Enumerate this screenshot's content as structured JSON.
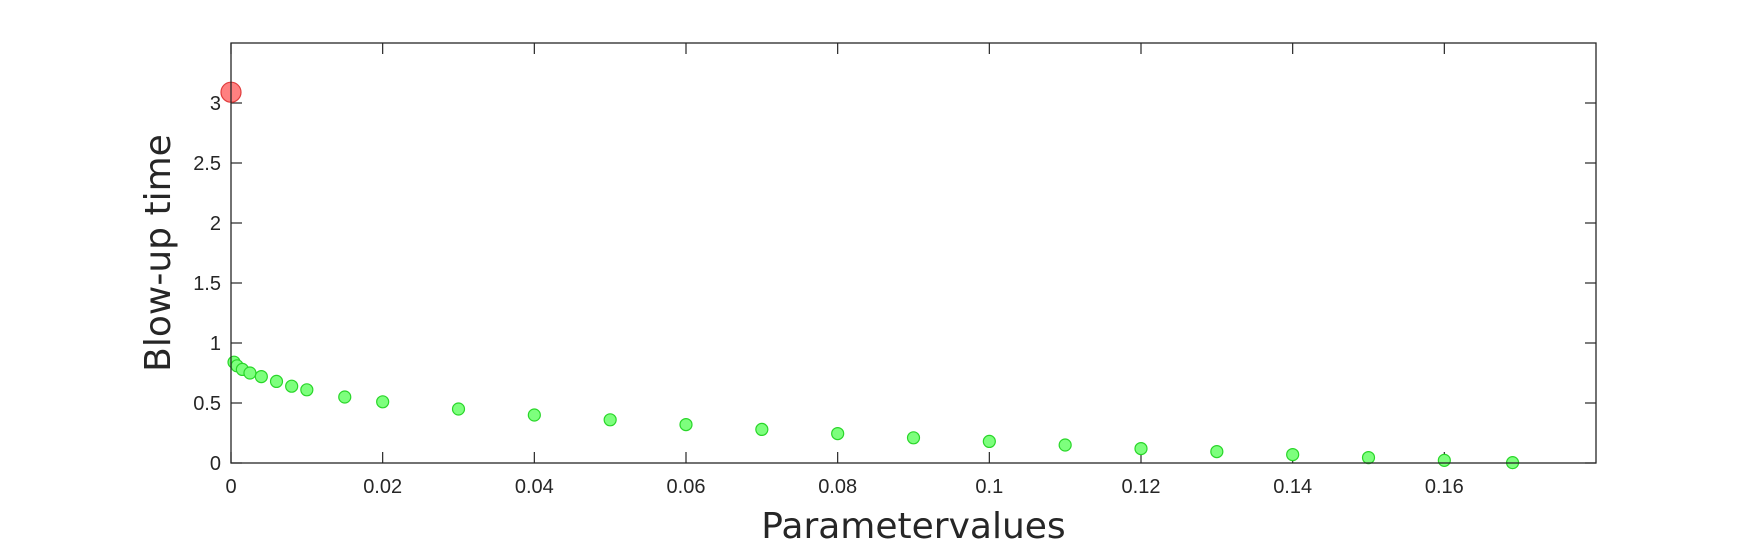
{
  "chart_data": {
    "type": "scatter",
    "xlabel": "Parametervalues",
    "ylabel": "Blow-up time",
    "xlim": [
      0,
      0.18
    ],
    "ylim": [
      0,
      3.5
    ],
    "x_ticks": [
      0,
      0.02,
      0.04,
      0.06,
      0.08,
      0.1,
      0.12,
      0.14,
      0.16
    ],
    "x_tick_labels": [
      "0",
      "0.02",
      "0.04",
      "0.06",
      "0.08",
      "0.1",
      "0.12",
      "0.14",
      "0.16"
    ],
    "y_ticks": [
      0,
      0.5,
      1,
      1.5,
      2,
      2.5,
      3
    ],
    "y_tick_labels": [
      "0",
      "0.5",
      "1",
      "1.5",
      "2",
      "2.5",
      "3"
    ],
    "grid": false,
    "box": true,
    "series": [
      {
        "color": "#ff8080",
        "edge_color": "#e03c3c",
        "marker_size": "large",
        "points": [
          [
            0,
            3.09
          ]
        ]
      },
      {
        "color": "#7dff7d",
        "edge_color": "#29d629",
        "marker_size": "small",
        "points": [
          [
            0.0004,
            0.84
          ],
          [
            0.0008,
            0.81
          ],
          [
            0.0015,
            0.78
          ],
          [
            0.0025,
            0.75
          ],
          [
            0.004,
            0.72
          ],
          [
            0.006,
            0.68
          ],
          [
            0.008,
            0.64
          ],
          [
            0.01,
            0.61
          ],
          [
            0.015,
            0.55
          ],
          [
            0.02,
            0.51
          ],
          [
            0.03,
            0.45
          ],
          [
            0.04,
            0.4
          ],
          [
            0.05,
            0.36
          ],
          [
            0.06,
            0.32
          ],
          [
            0.07,
            0.28
          ],
          [
            0.08,
            0.245
          ],
          [
            0.09,
            0.21
          ],
          [
            0.1,
            0.18
          ],
          [
            0.11,
            0.15
          ],
          [
            0.12,
            0.12
          ],
          [
            0.13,
            0.095
          ],
          [
            0.14,
            0.07
          ],
          [
            0.15,
            0.045
          ],
          [
            0.16,
            0.022
          ],
          [
            0.169,
            0.003
          ]
        ]
      }
    ]
  }
}
